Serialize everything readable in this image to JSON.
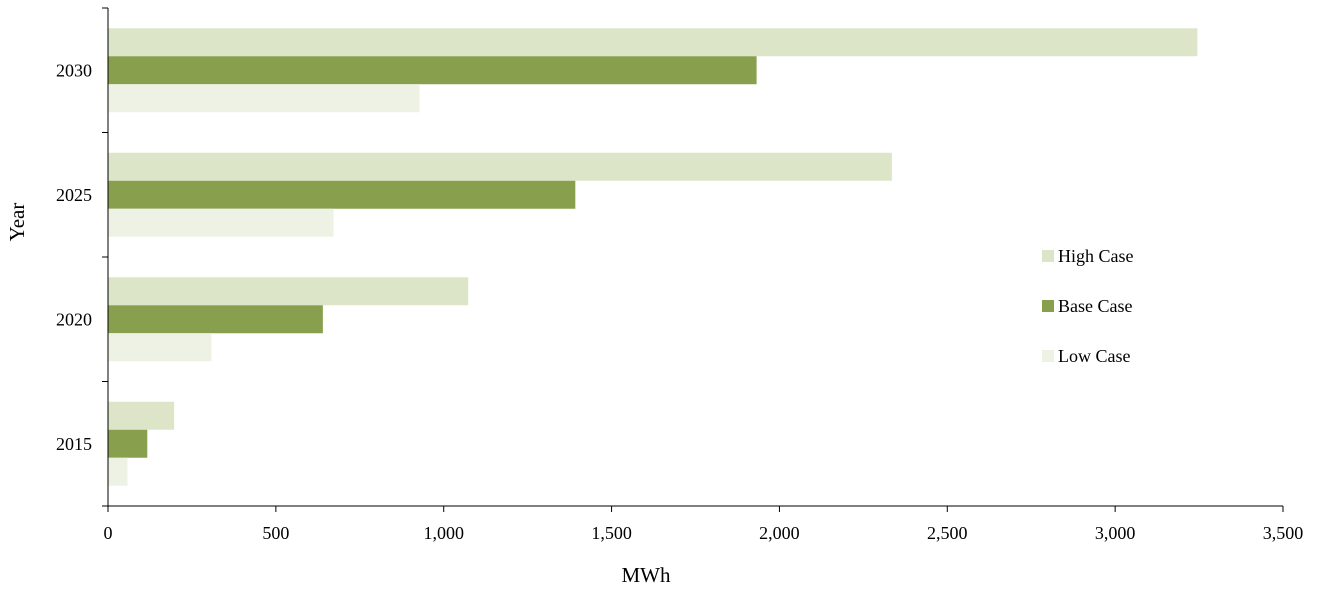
{
  "chart_data": {
    "type": "bar",
    "orientation": "horizontal",
    "categories": [
      "2015",
      "2020",
      "2025",
      "2030"
    ],
    "series": [
      {
        "name": "High Case",
        "values": [
          197,
          1073,
          2335,
          3245
        ],
        "color": "#dde5c9"
      },
      {
        "name": "Base Case",
        "values": [
          117,
          640,
          1392,
          1932
        ],
        "color": "#88a04e"
      },
      {
        "name": "Low Case",
        "values": [
          58,
          308,
          672,
          928
        ],
        "color": "#eef2e4"
      }
    ],
    "xlabel": "MWh",
    "ylabel": "Year",
    "xlim": [
      0,
      3500
    ],
    "xticks": [
      "0",
      "500",
      "1,000",
      "1,500",
      "2,000",
      "2,500",
      "3,000",
      "3,500"
    ],
    "grid": false,
    "legend_position": "right"
  }
}
